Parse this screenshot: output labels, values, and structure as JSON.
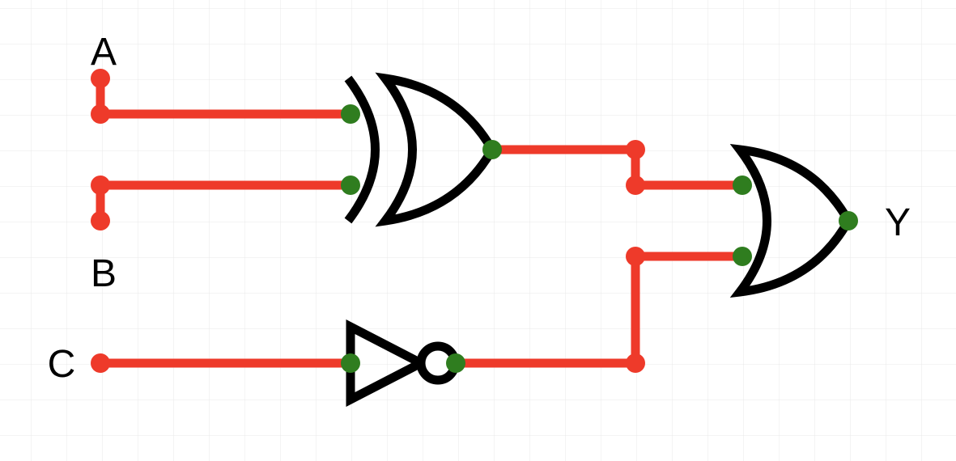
{
  "labels": {
    "input_a": "A",
    "input_b": "B",
    "input_c": "C",
    "output_y": "Y"
  },
  "colors": {
    "wire": "#ee3a2a",
    "pin": "#2f7d1f",
    "gate": "#000000",
    "grid": "#e9e9e9"
  },
  "gates": {
    "gate_1": "XOR",
    "gate_2": "NOT",
    "gate_3": "OR"
  }
}
